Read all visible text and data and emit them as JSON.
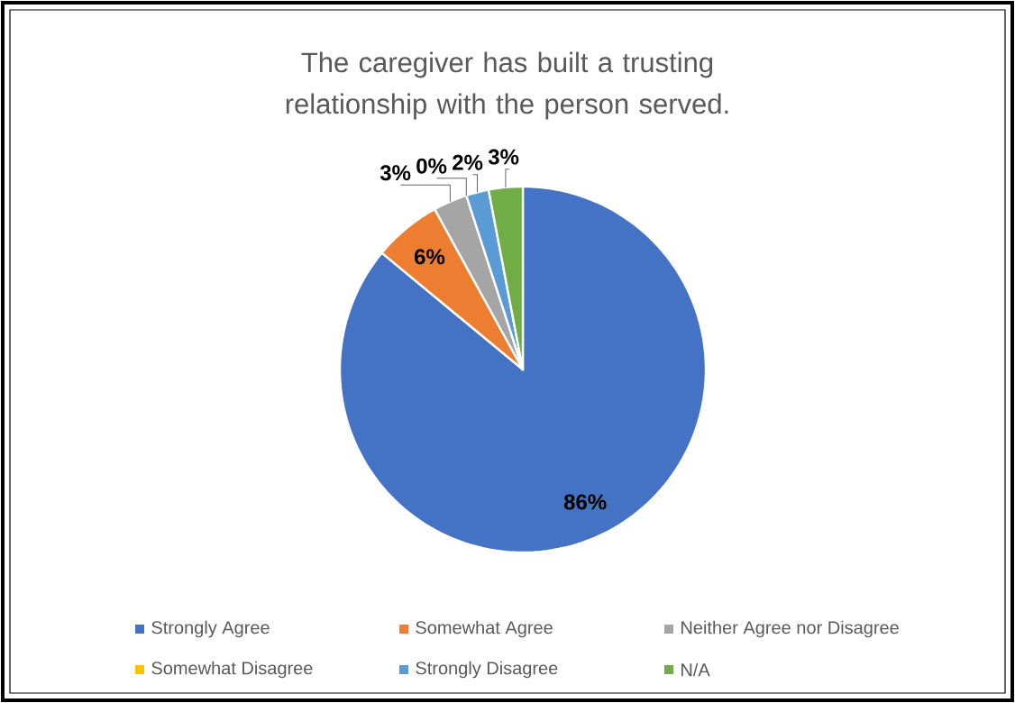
{
  "chart_data": {
    "type": "pie",
    "title": "The caregiver has built a trusting relationship with the person served.",
    "categories": [
      "Strongly Agree",
      "Somewhat Agree",
      "Neither Agree nor Disagree",
      "Somewhat Disagree",
      "Strongly Disagree",
      "N/A"
    ],
    "values": [
      86,
      6,
      3,
      0,
      2,
      3
    ],
    "value_labels": [
      "86%",
      "6%",
      "3%",
      "0%",
      "2%",
      "3%"
    ],
    "colors": [
      "#4472c4",
      "#ed7d31",
      "#a5a5a5",
      "#ffc000",
      "#5b9bd5",
      "#70ad47"
    ],
    "legend": "bottom"
  }
}
